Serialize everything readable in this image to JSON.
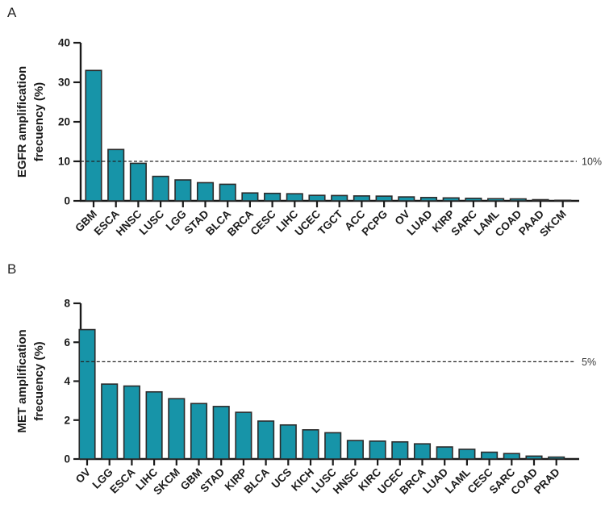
{
  "figure": {
    "background": "#ffffff",
    "panel_letters": [
      "A",
      "B"
    ]
  },
  "colors": {
    "bar_fill": "#1794A8",
    "bar_stroke": "#2B2B2B",
    "axis": "#1A1A1A",
    "text": "#1A1A1A",
    "threshold_line": "#222222",
    "threshold_text": "#3A3A3A"
  },
  "chart_data": [
    {
      "type": "bar",
      "panel": "A",
      "ylabel_lines": [
        "EGFR amplification",
        "frecuency (%)"
      ],
      "categories": [
        "GBM",
        "ESCA",
        "HNSC",
        "LUSC",
        "LGG",
        "STAD",
        "BLCA",
        "BRCA",
        "CESC",
        "LIHC",
        "UCEC",
        "TGCT",
        "ACC",
        "PCPG",
        "OV",
        "LUAD",
        "KIRP",
        "SARC",
        "LAML",
        "COAD",
        "PAAD",
        "SKCM"
      ],
      "values": [
        33.0,
        13.0,
        9.5,
        6.2,
        5.3,
        4.6,
        4.2,
        2.0,
        1.9,
        1.8,
        1.4,
        1.35,
        1.25,
        1.2,
        1.0,
        0.85,
        0.75,
        0.65,
        0.55,
        0.5,
        0.3,
        0.15
      ],
      "ylim": [
        0,
        40
      ],
      "yticks": [
        0,
        10,
        20,
        30,
        40
      ],
      "threshold": {
        "value": 10,
        "label": "10%"
      },
      "grid": false,
      "legend": null
    },
    {
      "type": "bar",
      "panel": "B",
      "ylabel_lines": [
        "MET amplification",
        "frecuency (%)"
      ],
      "categories": [
        "OV",
        "LGG",
        "ESCA",
        "LIHC",
        "SKCM",
        "GBM",
        "STAD",
        "KIRP",
        "BLCA",
        "UCS",
        "KICH",
        "LUSC",
        "HNSC",
        "KIRC",
        "UCEC",
        "BRCA",
        "LUAD",
        "LAML",
        "CESC",
        "SARC",
        "COAD",
        "PRAD"
      ],
      "values": [
        6.65,
        3.85,
        3.75,
        3.45,
        3.1,
        2.85,
        2.7,
        2.4,
        1.95,
        1.75,
        1.5,
        1.35,
        0.95,
        0.92,
        0.88,
        0.78,
        0.62,
        0.5,
        0.35,
        0.28,
        0.15,
        0.1
      ],
      "ylim": [
        0,
        8
      ],
      "yticks": [
        0,
        2,
        4,
        6,
        8
      ],
      "threshold": {
        "value": 5,
        "label": "5%"
      },
      "grid": false,
      "legend": null
    }
  ]
}
